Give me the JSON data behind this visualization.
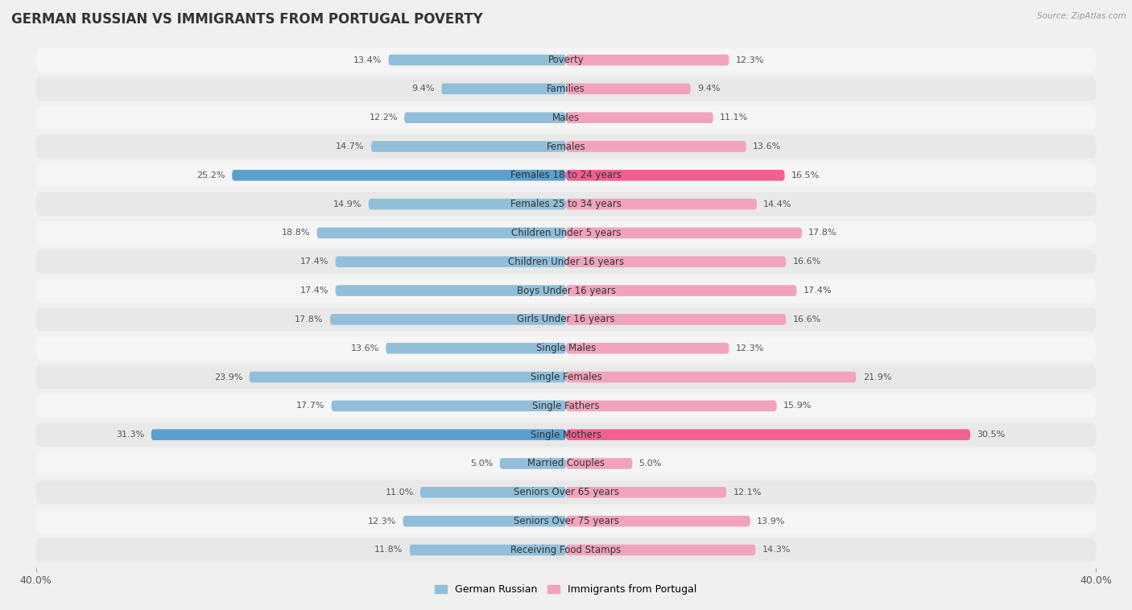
{
  "title": "GERMAN RUSSIAN VS IMMIGRANTS FROM PORTUGAL POVERTY",
  "source": "Source: ZipAtlas.com",
  "categories": [
    "Poverty",
    "Families",
    "Males",
    "Females",
    "Females 18 to 24 years",
    "Females 25 to 34 years",
    "Children Under 5 years",
    "Children Under 16 years",
    "Boys Under 16 years",
    "Girls Under 16 years",
    "Single Males",
    "Single Females",
    "Single Fathers",
    "Single Mothers",
    "Married Couples",
    "Seniors Over 65 years",
    "Seniors Over 75 years",
    "Receiving Food Stamps"
  ],
  "left_values": [
    13.4,
    9.4,
    12.2,
    14.7,
    25.2,
    14.9,
    18.8,
    17.4,
    17.4,
    17.8,
    13.6,
    23.9,
    17.7,
    31.3,
    5.0,
    11.0,
    12.3,
    11.8
  ],
  "right_values": [
    12.3,
    9.4,
    11.1,
    13.6,
    16.5,
    14.4,
    17.8,
    16.6,
    17.4,
    16.6,
    12.3,
    21.9,
    15.9,
    30.5,
    5.0,
    12.1,
    13.9,
    14.3
  ],
  "left_color": "#91bfda",
  "right_color": "#f2a3bc",
  "highlight_left_color": "#5b9fce",
  "highlight_right_color": "#f06090",
  "highlight_rows": [
    4,
    13
  ],
  "max_val": 40.0,
  "legend_left": "German Russian",
  "legend_right": "Immigrants from Portugal",
  "bg_color": "#f0f0f0",
  "row_bg_color": "#ffffff",
  "row_bg_alt": "#e8e8e8",
  "title_fontsize": 12,
  "label_fontsize": 8.5,
  "value_fontsize": 8.0
}
